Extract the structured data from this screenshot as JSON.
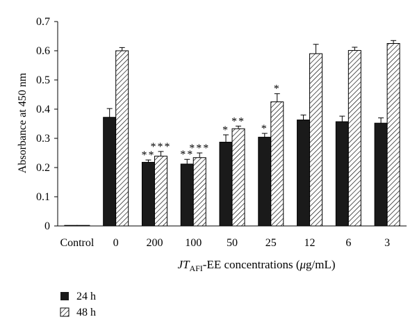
{
  "chart_data": {
    "type": "bar",
    "ylabel": "Absorbance at 450 nm",
    "xlabel": {
      "prefix": "JT",
      "subscript": "AFI",
      "suffix": "-EE concentrations (",
      "mu": "μ",
      "unit": "g/mL)"
    },
    "ylim": [
      0,
      0.7
    ],
    "yticks": [
      "0",
      "0.1",
      "0.2",
      "0.3",
      "0.4",
      "0.5",
      "0.6",
      "0.7"
    ],
    "categories": [
      "Control",
      "0",
      "200",
      "100",
      "50",
      "25",
      "12",
      "6",
      "3"
    ],
    "series": [
      {
        "name": "24 h",
        "fill": "solid",
        "color": "#1a1a1a",
        "values": [
          0.0,
          0.372,
          0.218,
          0.212,
          0.287,
          0.304,
          0.363,
          0.357,
          0.352
        ],
        "errors": [
          0.0,
          0.03,
          0.008,
          0.016,
          0.025,
          0.013,
          0.017,
          0.019,
          0.018
        ],
        "significance": [
          "",
          "",
          "**",
          "**",
          "*",
          "*",
          "",
          "",
          ""
        ]
      },
      {
        "name": "48 h",
        "fill": "hatched",
        "color": "#ffffff",
        "values": [
          0.0,
          0.6,
          0.239,
          0.234,
          0.333,
          0.425,
          0.59,
          0.601,
          0.625
        ],
        "errors": [
          0.0,
          0.011,
          0.016,
          0.016,
          0.009,
          0.028,
          0.032,
          0.011,
          0.01
        ],
        "significance": [
          "",
          "",
          "***",
          "***",
          "**",
          "*",
          "",
          "",
          ""
        ]
      }
    ],
    "legend": [
      "24 h",
      "48 h"
    ],
    "legend_position": "bottom-left"
  }
}
